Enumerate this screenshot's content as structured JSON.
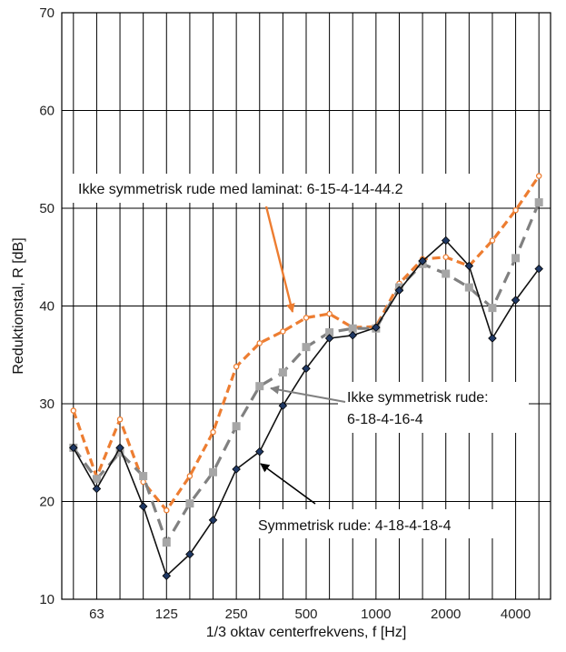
{
  "chart_data": {
    "type": "line",
    "title": "",
    "xlabel": "1/3 oktav centerfrekvens, f [Hz]",
    "ylabel": "Reduktionstal, R [dB]",
    "ylim": [
      10,
      70
    ],
    "yticks": [
      "10",
      "20",
      "30",
      "40",
      "50",
      "60",
      "70"
    ],
    "grid": true,
    "x_bands_hz": [
      50,
      63,
      80,
      100,
      125,
      160,
      200,
      250,
      315,
      400,
      500,
      630,
      800,
      1000,
      1250,
      1600,
      2000,
      2500,
      3150,
      4000,
      5000
    ],
    "x_tick_labels": [
      {
        "band": 1,
        "label": "63"
      },
      {
        "band": 4,
        "label": "125"
      },
      {
        "band": 7,
        "label": "250"
      },
      {
        "band": 10,
        "label": "500"
      },
      {
        "band": 13,
        "label": "1000"
      },
      {
        "band": 16,
        "label": "2000"
      },
      {
        "band": 19,
        "label": "4000"
      }
    ],
    "series": [
      {
        "name": "Ikke symmetrisk rude med laminat: 6-15-4-14-44.2",
        "color": "#ed7d31",
        "marker_fill": "#ffffff",
        "style": "dashed",
        "values": [
          29.3,
          22.5,
          28.4,
          22.0,
          19.1,
          22.6,
          27.1,
          33.8,
          36.2,
          37.4,
          38.8,
          39.2,
          37.8,
          37.9,
          42.3,
          44.8,
          45.0,
          44.1,
          46.7,
          49.8,
          53.3
        ]
      },
      {
        "name": "Ikke symmetrisk rude: 6-18-4-16-4",
        "color": "#808080",
        "marker_fill": "#a6a6a6",
        "style": "dashed",
        "values": [
          25.5,
          22.3,
          25.0,
          22.6,
          15.8,
          19.8,
          23.0,
          27.7,
          31.8,
          33.2,
          35.8,
          37.3,
          37.7,
          37.7,
          41.9,
          44.3,
          43.3,
          41.9,
          39.8,
          44.9,
          50.6
        ]
      },
      {
        "name": "Symmetrisk rude: 4-18-4-18-4",
        "color": "#111111",
        "marker_fill": "#1f3864",
        "style": "solid",
        "values": [
          25.5,
          21.3,
          25.5,
          19.5,
          12.4,
          14.6,
          18.1,
          23.3,
          25.1,
          29.8,
          33.6,
          36.7,
          37.0,
          37.8,
          41.6,
          44.6,
          46.7,
          44.1,
          36.7,
          40.6,
          43.8
        ]
      }
    ],
    "annotations": [
      {
        "lines": [
          "Ikke symmetrisk rude med laminat: 6-15-4-14-44.2"
        ],
        "series": 0,
        "arrow_to_band": 10
      },
      {
        "lines": [
          "Ikke symmetrisk rude:",
          "6-18-4-16-4"
        ],
        "series": 1,
        "arrow_to_band": 8
      },
      {
        "lines": [
          "Symmetrisk rude: 4-18-4-18-4"
        ],
        "series": 2,
        "arrow_to_band": 8
      }
    ]
  }
}
